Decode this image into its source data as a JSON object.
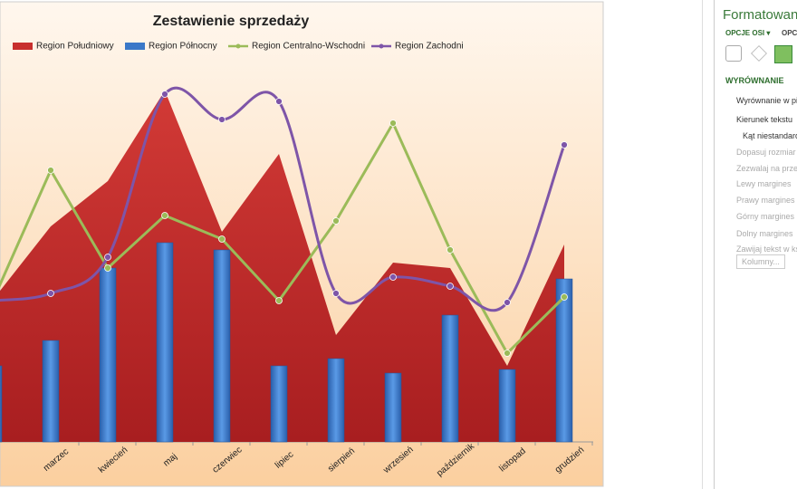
{
  "chart_data": {
    "type": "combo",
    "title": "Zestawienie sprzedaży",
    "categories": [
      null,
      "marzec",
      "kwiecień",
      "maj",
      "czerwiec",
      "lipiec",
      "sierpień",
      "wrzesień",
      "październik",
      "listopad",
      "grudzień"
    ],
    "ylim": [
      0,
      100
    ],
    "series": [
      {
        "name": "Region Południowy",
        "kind": "area",
        "color": "#c8302e",
        "values": [
          39.5,
          59.5,
          72,
          97,
          58,
          79.5,
          29.5,
          49.5,
          48,
          21,
          54.5
        ]
      },
      {
        "name": "Region Północny",
        "kind": "bar",
        "color": "#3a78c8",
        "values": [
          21,
          28,
          48,
          55,
          53,
          21,
          23,
          19,
          35,
          20,
          45
        ]
      },
      {
        "name": "Region Centralno-Wschodni",
        "kind": "line",
        "color": "#9bbb59",
        "values": [
          39.5,
          75,
          48,
          62.5,
          56,
          39,
          61,
          88,
          53,
          24.5,
          40
        ]
      },
      {
        "name": "Region Zachodni",
        "kind": "smooth",
        "color": "#7e55a8",
        "values": [
          39,
          41,
          51,
          96,
          89,
          94,
          41,
          45.5,
          43,
          38.5,
          82
        ]
      }
    ]
  },
  "pane": {
    "title": "Formatowanie",
    "tabs": [
      "OPCJE OSI ▾",
      "OPCJE"
    ],
    "section": "WYRÓWNANIE",
    "items": [
      "Wyrównanie w pionie",
      "Kierunek tekstu",
      "Kąt niestandardowy",
      "Dopasuj rozmiar",
      "Zezwalaj na przepełnienie",
      "Lewy margines",
      "Prawy margines",
      "Górny margines",
      "Dolny margines",
      "Zawijaj tekst w kształcie"
    ],
    "button": "Kolumny..."
  }
}
